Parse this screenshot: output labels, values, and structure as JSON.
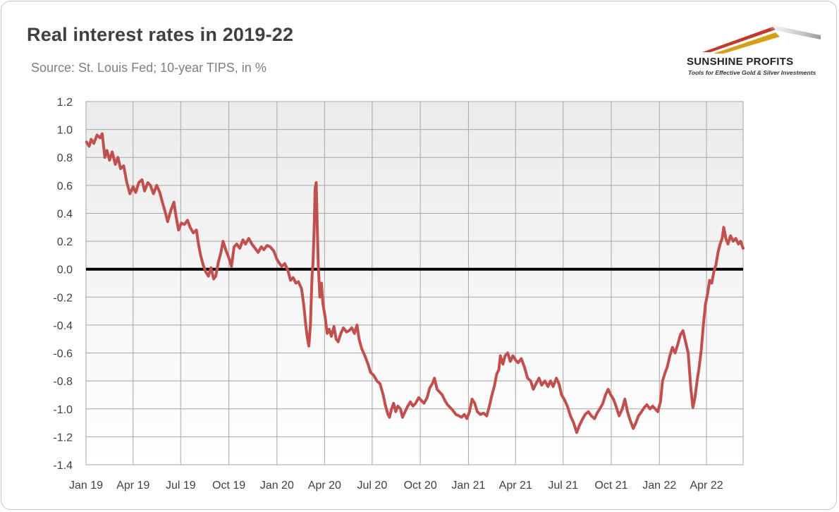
{
  "header": {
    "title": "Real interest rates in 2019-22",
    "subtitle": "Source: St. Louis Fed; 10-year TIPS, in %"
  },
  "logo": {
    "name": "SUNSHINE PROFITS",
    "tagline": "Tools for Effective Gold & Silver Investments",
    "colors": [
      "#c0392b",
      "#d4a017",
      "#b0b0b0"
    ]
  },
  "chart_data": {
    "type": "line",
    "title": "Real interest rates in 2019-22",
    "subtitle": "Source: St. Louis Fed; 10-year TIPS, in %",
    "xlabel": "",
    "ylabel": "",
    "x_range": [
      "2019-01-01",
      "2022-06-10"
    ],
    "ylim": [
      -1.4,
      1.2
    ],
    "y_ticks": [
      1.2,
      1.0,
      0.8,
      0.6,
      0.4,
      0.2,
      0.0,
      -0.2,
      -0.4,
      -0.6,
      -0.8,
      -1.0,
      -1.2,
      -1.4
    ],
    "y_tick_labels": [
      "1.2",
      "1.0",
      "0.8",
      "0.6",
      "0.4",
      "0.2",
      "0.0",
      "-0.2",
      "-0.4",
      "-0.6",
      "-0.8",
      "-1.0",
      "-1.2",
      "-1.4"
    ],
    "x_ticks": [
      "2019-01-01",
      "2019-04-01",
      "2019-07-01",
      "2019-10-01",
      "2020-01-01",
      "2020-04-01",
      "2020-07-01",
      "2020-10-01",
      "2021-01-01",
      "2021-04-01",
      "2021-07-01",
      "2021-10-01",
      "2022-01-01",
      "2022-04-01"
    ],
    "x_tick_labels": [
      "Jan 19",
      "Apr 19",
      "Jul 19",
      "Oct 19",
      "Jan 20",
      "Apr 20",
      "Jul 20",
      "Oct 20",
      "Jan 21",
      "Apr 21",
      "Jul 21",
      "Oct 21",
      "Jan 22",
      "Apr 22"
    ],
    "grid": true,
    "legend": "none",
    "reference_line": {
      "y": 0.0,
      "color": "#000000"
    },
    "series": [
      {
        "color": "#c0504d",
        "points": [
          [
            "2019-01-02",
            0.91
          ],
          [
            "2019-01-07",
            0.88
          ],
          [
            "2019-01-11",
            0.93
          ],
          [
            "2019-01-16",
            0.9
          ],
          [
            "2019-01-22",
            0.96
          ],
          [
            "2019-01-28",
            0.94
          ],
          [
            "2019-02-01",
            0.97
          ],
          [
            "2019-02-06",
            0.8
          ],
          [
            "2019-02-10",
            0.85
          ],
          [
            "2019-02-15",
            0.78
          ],
          [
            "2019-02-20",
            0.84
          ],
          [
            "2019-02-26",
            0.75
          ],
          [
            "2019-03-03",
            0.8
          ],
          [
            "2019-03-08",
            0.72
          ],
          [
            "2019-03-14",
            0.74
          ],
          [
            "2019-03-20",
            0.62
          ],
          [
            "2019-03-26",
            0.54
          ],
          [
            "2019-04-01",
            0.59
          ],
          [
            "2019-04-06",
            0.55
          ],
          [
            "2019-04-12",
            0.62
          ],
          [
            "2019-04-18",
            0.64
          ],
          [
            "2019-04-23",
            0.56
          ],
          [
            "2019-04-29",
            0.62
          ],
          [
            "2019-05-04",
            0.6
          ],
          [
            "2019-05-10",
            0.54
          ],
          [
            "2019-05-16",
            0.6
          ],
          [
            "2019-05-22",
            0.55
          ],
          [
            "2019-05-27",
            0.48
          ],
          [
            "2019-06-02",
            0.4
          ],
          [
            "2019-06-06",
            0.34
          ],
          [
            "2019-06-12",
            0.42
          ],
          [
            "2019-06-18",
            0.48
          ],
          [
            "2019-06-22",
            0.38
          ],
          [
            "2019-06-27",
            0.28
          ],
          [
            "2019-07-02",
            0.33
          ],
          [
            "2019-07-08",
            0.32
          ],
          [
            "2019-07-14",
            0.35
          ],
          [
            "2019-07-19",
            0.3
          ],
          [
            "2019-07-25",
            0.26
          ],
          [
            "2019-07-31",
            0.28
          ],
          [
            "2019-08-04",
            0.18
          ],
          [
            "2019-08-08",
            0.1
          ],
          [
            "2019-08-13",
            0.03
          ],
          [
            "2019-08-18",
            -0.02
          ],
          [
            "2019-08-23",
            -0.05
          ],
          [
            "2019-08-28",
            0.01
          ],
          [
            "2019-09-02",
            -0.07
          ],
          [
            "2019-09-06",
            -0.05
          ],
          [
            "2019-09-11",
            0.05
          ],
          [
            "2019-09-16",
            0.12
          ],
          [
            "2019-09-20",
            0.2
          ],
          [
            "2019-09-25",
            0.14
          ],
          [
            "2019-10-01",
            0.08
          ],
          [
            "2019-10-06",
            0.02
          ],
          [
            "2019-10-11",
            0.16
          ],
          [
            "2019-10-16",
            0.18
          ],
          [
            "2019-10-22",
            0.15
          ],
          [
            "2019-10-28",
            0.21
          ],
          [
            "2019-11-02",
            0.18
          ],
          [
            "2019-11-08",
            0.22
          ],
          [
            "2019-11-14",
            0.18
          ],
          [
            "2019-11-20",
            0.15
          ],
          [
            "2019-11-26",
            0.12
          ],
          [
            "2019-12-02",
            0.16
          ],
          [
            "2019-12-07",
            0.14
          ],
          [
            "2019-12-13",
            0.17
          ],
          [
            "2019-12-19",
            0.16
          ],
          [
            "2019-12-26",
            0.13
          ],
          [
            "2020-01-01",
            0.07
          ],
          [
            "2020-01-06",
            0.04
          ],
          [
            "2020-01-10",
            0.02
          ],
          [
            "2020-01-16",
            0.04
          ],
          [
            "2020-01-22",
            -0.01
          ],
          [
            "2020-01-27",
            -0.08
          ],
          [
            "2020-02-01",
            -0.06
          ],
          [
            "2020-02-06",
            -0.1
          ],
          [
            "2020-02-11",
            -0.09
          ],
          [
            "2020-02-17",
            -0.14
          ],
          [
            "2020-02-21",
            -0.25
          ],
          [
            "2020-02-25",
            -0.4
          ],
          [
            "2020-02-28",
            -0.49
          ],
          [
            "2020-03-02",
            -0.55
          ],
          [
            "2020-03-05",
            -0.4
          ],
          [
            "2020-03-08",
            -0.05
          ],
          [
            "2020-03-10",
            0.05
          ],
          [
            "2020-03-12",
            0.28
          ],
          [
            "2020-03-14",
            0.58
          ],
          [
            "2020-03-16",
            0.62
          ],
          [
            "2020-03-18",
            0.3
          ],
          [
            "2020-03-20",
            0.02
          ],
          [
            "2020-03-23",
            -0.2
          ],
          [
            "2020-03-26",
            -0.1
          ],
          [
            "2020-03-29",
            -0.25
          ],
          [
            "2020-04-02",
            -0.34
          ],
          [
            "2020-04-06",
            -0.46
          ],
          [
            "2020-04-10",
            -0.43
          ],
          [
            "2020-04-14",
            -0.48
          ],
          [
            "2020-04-19",
            -0.41
          ],
          [
            "2020-04-23",
            -0.5
          ],
          [
            "2020-04-27",
            -0.52
          ],
          [
            "2020-05-02",
            -0.46
          ],
          [
            "2020-05-07",
            -0.42
          ],
          [
            "2020-05-13",
            -0.45
          ],
          [
            "2020-05-18",
            -0.44
          ],
          [
            "2020-05-23",
            -0.42
          ],
          [
            "2020-05-28",
            -0.46
          ],
          [
            "2020-06-02",
            -0.4
          ],
          [
            "2020-06-06",
            -0.5
          ],
          [
            "2020-06-11",
            -0.57
          ],
          [
            "2020-06-17",
            -0.62
          ],
          [
            "2020-06-23",
            -0.68
          ],
          [
            "2020-06-28",
            -0.74
          ],
          [
            "2020-07-04",
            -0.76
          ],
          [
            "2020-07-10",
            -0.8
          ],
          [
            "2020-07-16",
            -0.82
          ],
          [
            "2020-07-22",
            -0.9
          ],
          [
            "2020-07-26",
            -0.97
          ],
          [
            "2020-07-31",
            -1.04
          ],
          [
            "2020-08-03",
            -1.06
          ],
          [
            "2020-08-07",
            -1.0
          ],
          [
            "2020-08-11",
            -0.96
          ],
          [
            "2020-08-15",
            -1.02
          ],
          [
            "2020-08-19",
            -0.98
          ],
          [
            "2020-08-24",
            -1.0
          ],
          [
            "2020-08-28",
            -1.06
          ],
          [
            "2020-09-02",
            -1.02
          ],
          [
            "2020-09-07",
            -0.98
          ],
          [
            "2020-09-12",
            -0.95
          ],
          [
            "2020-09-17",
            -0.98
          ],
          [
            "2020-09-22",
            -0.96
          ],
          [
            "2020-09-28",
            -0.92
          ],
          [
            "2020-10-03",
            -0.94
          ],
          [
            "2020-10-08",
            -0.96
          ],
          [
            "2020-10-14",
            -0.92
          ],
          [
            "2020-10-19",
            -0.85
          ],
          [
            "2020-10-24",
            -0.82
          ],
          [
            "2020-10-28",
            -0.78
          ],
          [
            "2020-11-02",
            -0.86
          ],
          [
            "2020-11-07",
            -0.88
          ],
          [
            "2020-11-12",
            -0.9
          ],
          [
            "2020-11-17",
            -0.94
          ],
          [
            "2020-11-22",
            -0.97
          ],
          [
            "2020-11-27",
            -0.99
          ],
          [
            "2020-12-02",
            -1.01
          ],
          [
            "2020-12-08",
            -1.04
          ],
          [
            "2020-12-14",
            -1.05
          ],
          [
            "2020-12-19",
            -1.06
          ],
          [
            "2020-12-24",
            -1.04
          ],
          [
            "2020-12-29",
            -1.07
          ],
          [
            "2021-01-03",
            -1.02
          ],
          [
            "2021-01-08",
            -0.93
          ],
          [
            "2021-01-13",
            -0.96
          ],
          [
            "2021-01-18",
            -1.02
          ],
          [
            "2021-01-24",
            -1.04
          ],
          [
            "2021-01-30",
            -1.03
          ],
          [
            "2021-02-05",
            -1.05
          ],
          [
            "2021-02-10",
            -0.98
          ],
          [
            "2021-02-15",
            -0.9
          ],
          [
            "2021-02-20",
            -0.83
          ],
          [
            "2021-02-24",
            -0.75
          ],
          [
            "2021-02-28",
            -0.72
          ],
          [
            "2021-03-03",
            -0.62
          ],
          [
            "2021-03-08",
            -0.68
          ],
          [
            "2021-03-12",
            -0.62
          ],
          [
            "2021-03-17",
            -0.6
          ],
          [
            "2021-03-22",
            -0.66
          ],
          [
            "2021-03-27",
            -0.62
          ],
          [
            "2021-04-01",
            -0.65
          ],
          [
            "2021-04-06",
            -0.67
          ],
          [
            "2021-04-12",
            -0.64
          ],
          [
            "2021-04-18",
            -0.7
          ],
          [
            "2021-04-24",
            -0.78
          ],
          [
            "2021-04-30",
            -0.8
          ],
          [
            "2021-05-05",
            -0.86
          ],
          [
            "2021-05-10",
            -0.82
          ],
          [
            "2021-05-16",
            -0.78
          ],
          [
            "2021-05-21",
            -0.83
          ],
          [
            "2021-05-27",
            -0.8
          ],
          [
            "2021-06-02",
            -0.84
          ],
          [
            "2021-06-07",
            -0.8
          ],
          [
            "2021-06-12",
            -0.84
          ],
          [
            "2021-06-18",
            -0.78
          ],
          [
            "2021-06-23",
            -0.82
          ],
          [
            "2021-06-28",
            -0.9
          ],
          [
            "2021-07-03",
            -0.93
          ],
          [
            "2021-07-09",
            -0.98
          ],
          [
            "2021-07-15",
            -1.05
          ],
          [
            "2021-07-21",
            -1.1
          ],
          [
            "2021-07-27",
            -1.17
          ],
          [
            "2021-08-01",
            -1.12
          ],
          [
            "2021-08-06",
            -1.08
          ],
          [
            "2021-08-12",
            -1.04
          ],
          [
            "2021-08-18",
            -1.02
          ],
          [
            "2021-08-24",
            -1.05
          ],
          [
            "2021-08-30",
            -1.07
          ],
          [
            "2021-09-04",
            -1.03
          ],
          [
            "2021-09-09",
            -1.0
          ],
          [
            "2021-09-15",
            -0.96
          ],
          [
            "2021-09-20",
            -0.9
          ],
          [
            "2021-09-25",
            -0.86
          ],
          [
            "2021-09-30",
            -0.9
          ],
          [
            "2021-10-05",
            -0.93
          ],
          [
            "2021-10-10",
            -0.98
          ],
          [
            "2021-10-16",
            -1.05
          ],
          [
            "2021-10-22",
            -1.0
          ],
          [
            "2021-10-27",
            -0.93
          ],
          [
            "2021-11-01",
            -1.02
          ],
          [
            "2021-11-06",
            -1.08
          ],
          [
            "2021-11-12",
            -1.14
          ],
          [
            "2021-11-17",
            -1.1
          ],
          [
            "2021-11-22",
            -1.05
          ],
          [
            "2021-11-28",
            -1.02
          ],
          [
            "2021-12-03",
            -0.99
          ],
          [
            "2021-12-08",
            -0.97
          ],
          [
            "2021-12-14",
            -1.0
          ],
          [
            "2021-12-19",
            -0.98
          ],
          [
            "2021-12-24",
            -1.0
          ],
          [
            "2021-12-29",
            -1.02
          ],
          [
            "2022-01-03",
            -0.95
          ],
          [
            "2022-01-07",
            -0.8
          ],
          [
            "2022-01-12",
            -0.74
          ],
          [
            "2022-01-16",
            -0.7
          ],
          [
            "2022-01-21",
            -0.62
          ],
          [
            "2022-01-26",
            -0.56
          ],
          [
            "2022-01-31",
            -0.6
          ],
          [
            "2022-02-05",
            -0.54
          ],
          [
            "2022-02-10",
            -0.47
          ],
          [
            "2022-02-15",
            -0.44
          ],
          [
            "2022-02-20",
            -0.52
          ],
          [
            "2022-02-25",
            -0.6
          ],
          [
            "2022-03-02",
            -0.85
          ],
          [
            "2022-03-06",
            -0.99
          ],
          [
            "2022-03-10",
            -0.92
          ],
          [
            "2022-03-14",
            -0.8
          ],
          [
            "2022-03-18",
            -0.7
          ],
          [
            "2022-03-22",
            -0.58
          ],
          [
            "2022-03-26",
            -0.4
          ],
          [
            "2022-03-30",
            -0.25
          ],
          [
            "2022-04-03",
            -0.18
          ],
          [
            "2022-04-07",
            -0.08
          ],
          [
            "2022-04-11",
            -0.1
          ],
          [
            "2022-04-15",
            -0.02
          ],
          [
            "2022-04-19",
            0.03
          ],
          [
            "2022-04-23",
            0.12
          ],
          [
            "2022-04-27",
            0.18
          ],
          [
            "2022-05-01",
            0.22
          ],
          [
            "2022-05-04",
            0.3
          ],
          [
            "2022-05-08",
            0.22
          ],
          [
            "2022-05-12",
            0.18
          ],
          [
            "2022-05-17",
            0.24
          ],
          [
            "2022-05-22",
            0.2
          ],
          [
            "2022-05-27",
            0.22
          ],
          [
            "2022-06-01",
            0.18
          ],
          [
            "2022-06-05",
            0.2
          ],
          [
            "2022-06-10",
            0.15
          ]
        ]
      }
    ]
  }
}
